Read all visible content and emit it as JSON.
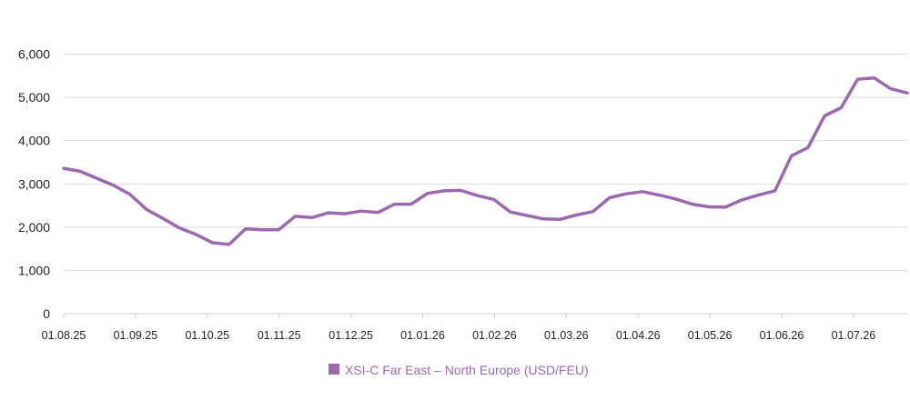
{
  "colors": {
    "series": "#9b6aae",
    "grid": "#d9d9d9",
    "axis": "#cccccc",
    "text": "#222222"
  },
  "chart_data": {
    "type": "line",
    "title": "",
    "xlabel": "",
    "ylabel": "",
    "ylim": [
      0,
      6000
    ],
    "y_ticks": [
      0,
      1000,
      2000,
      3000,
      4000,
      5000,
      6000
    ],
    "y_tick_labels": [
      "0",
      "1,000",
      "2,000",
      "3,000",
      "4,000",
      "5,000",
      "6,000"
    ],
    "x_tick_labels": [
      "01.08.25",
      "01.09.25",
      "01.10.25",
      "01.11.25",
      "01.12.25",
      "01.01.26",
      "01.02.26",
      "01.03.26",
      "01.04.26",
      "01.05.26",
      "01.06.26",
      "01.07.26"
    ],
    "grid": "horizontal",
    "legend_position": "bottom-center",
    "series": [
      {
        "name": "XSI-C Far East – North Europe (USD/FEU)",
        "values": [
          3360,
          3290,
          3130,
          2970,
          2760,
          2410,
          2200,
          1980,
          1830,
          1640,
          1600,
          1960,
          1940,
          1940,
          2250,
          2220,
          2330,
          2310,
          2370,
          2340,
          2530,
          2530,
          2780,
          2840,
          2850,
          2730,
          2640,
          2350,
          2270,
          2190,
          2180,
          2280,
          2360,
          2680,
          2770,
          2820,
          2740,
          2650,
          2530,
          2470,
          2460,
          2630,
          2740,
          2840,
          3650,
          3840,
          4570,
          4760,
          5420,
          5450,
          5200,
          5100
        ]
      }
    ]
  }
}
